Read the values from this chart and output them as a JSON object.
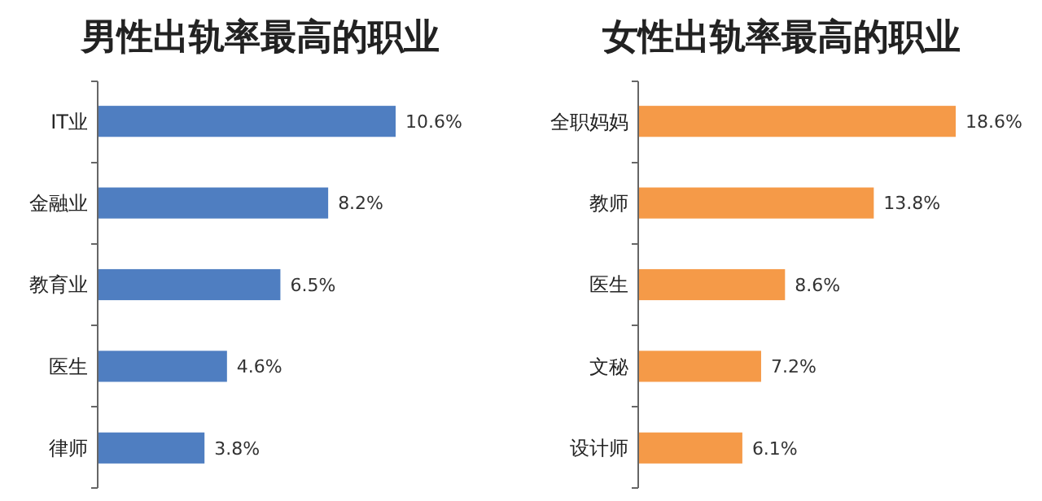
{
  "chart_data": [
    {
      "type": "bar",
      "orientation": "horizontal",
      "title": "男性出轨率最高的职业",
      "categories": [
        "IT业",
        "金融业",
        "教育业",
        "医生",
        "律师"
      ],
      "values": [
        10.6,
        8.2,
        6.5,
        4.6,
        3.8
      ],
      "value_labels": [
        "10.6%",
        "8.2%",
        "6.5%",
        "4.6%",
        "3.8%"
      ],
      "color": "#4f7ec1"
    },
    {
      "type": "bar",
      "orientation": "horizontal",
      "title": "女性出轨率最高的职业",
      "categories": [
        "全职妈妈",
        "教师",
        "医生",
        "文秘",
        "设计师"
      ],
      "values": [
        18.6,
        13.8,
        8.6,
        7.2,
        6.1
      ],
      "value_labels": [
        "18.6%",
        "13.8%",
        "8.6%",
        "7.2%",
        "6.1%"
      ],
      "color": "#f59a48"
    }
  ]
}
